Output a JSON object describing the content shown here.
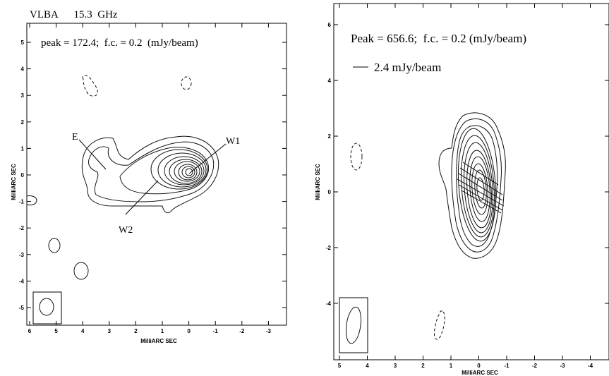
{
  "left_panel": {
    "header": "VLBA      15.3  GHz",
    "peak_text": "peak = 172.4;  f.c. = 0.2  (mJy/beam)",
    "xlabel": "MilliARC SEC",
    "ylabel": "MilliARC SEC",
    "x_ticks": [
      "6",
      "5",
      "4",
      "3",
      "2",
      "1",
      "0",
      "-1",
      "-2",
      "-3"
    ],
    "y_ticks": [
      "5",
      "4",
      "3",
      "2",
      "1",
      "0",
      "-1",
      "-2",
      "-3",
      "-4",
      "-5"
    ],
    "annotations": {
      "E": "E",
      "W1": "W1",
      "W2": "W2"
    }
  },
  "right_panel": {
    "peak_text": "Peak = 656.6;  f.c. = 0.2 (mJy/beam)",
    "legend_text": "2.4 mJy/beam",
    "xlabel": "MilliARC SEC",
    "ylabel": "MilliARC SEC",
    "x_ticks": [
      "5",
      "4",
      "3",
      "2",
      "1",
      "0",
      "-1",
      "-2",
      "-3",
      "-4"
    ],
    "y_ticks": [
      "6",
      "4",
      "2",
      "0",
      "-2",
      "-4"
    ]
  }
}
